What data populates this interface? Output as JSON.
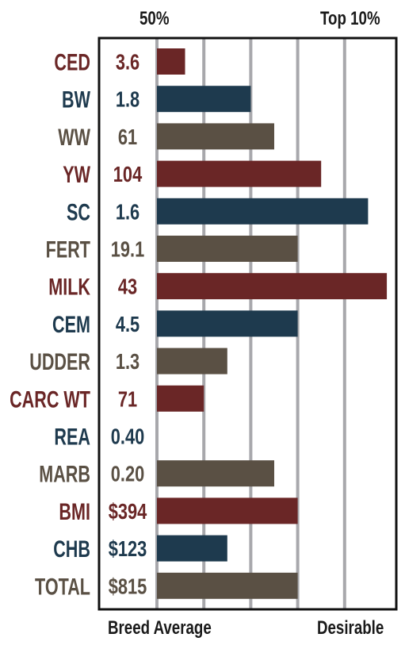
{
  "header": {
    "left": "50%",
    "right": "Top 10%"
  },
  "footer": {
    "left": "Breed Average",
    "right": "Desirable"
  },
  "colors": {
    "red": "#6a2626",
    "navy": "#1e3a4e",
    "brown": "#5a5044",
    "grid": "#a8a8ac",
    "frame": "#111111"
  },
  "chart_data": {
    "type": "bar",
    "orientation": "horizontal",
    "categories": [
      "CED",
      "BW",
      "WW",
      "YW",
      "SC",
      "FERT",
      "MILK",
      "CEM",
      "UDDER",
      "CARC WT",
      "REA",
      "MARB",
      "BMI",
      "CHB",
      "TOTAL"
    ],
    "value_labels": [
      "3.6",
      "1.8",
      "61",
      "104",
      "1.6",
      "19.1",
      "43",
      "4.5",
      "1.3",
      "71",
      "0.40",
      "0.20",
      "$394",
      "$123",
      "$815"
    ],
    "values": [
      12,
      40,
      50,
      70,
      90,
      60,
      98,
      60,
      30,
      20,
      0,
      50,
      60,
      30,
      60
    ],
    "colors": [
      "red",
      "navy",
      "brown",
      "red",
      "navy",
      "brown",
      "red",
      "navy",
      "brown",
      "red",
      "navy",
      "brown",
      "red",
      "navy",
      "brown"
    ],
    "xlim": [
      0,
      100
    ],
    "grid": true
  }
}
